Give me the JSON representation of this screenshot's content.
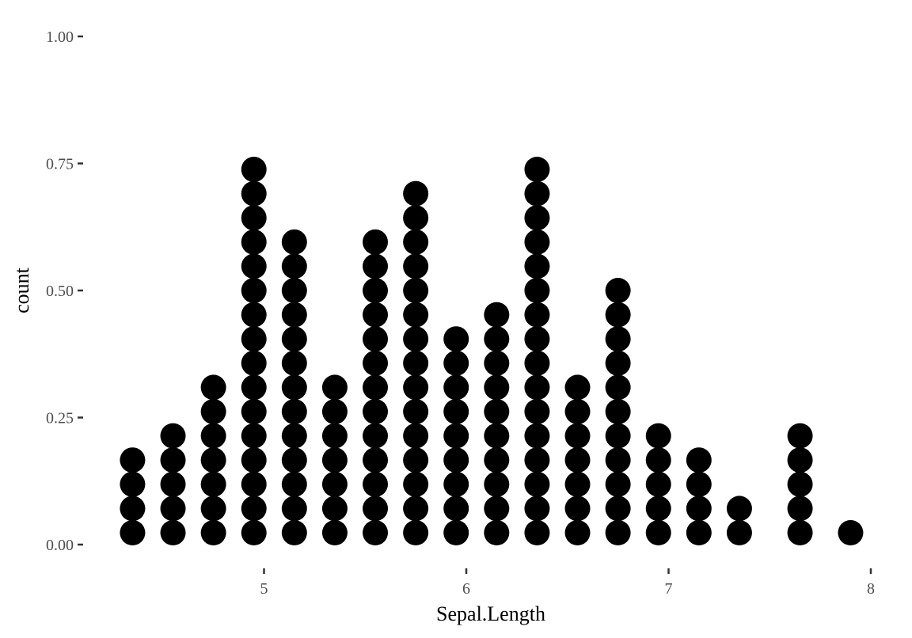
{
  "chart_data": {
    "type": "dotplot",
    "xlabel": "Sepal.Length",
    "ylabel": "count",
    "xlim": [
      4.0,
      8.0
    ],
    "ylim": [
      0.0,
      1.0
    ],
    "x_ticks": [
      5,
      6,
      7,
      8
    ],
    "x_tick_labels": [
      "5",
      "6",
      "7",
      "8"
    ],
    "y_ticks": [
      0.0,
      0.25,
      0.5,
      0.75,
      1.0
    ],
    "y_tick_labels": [
      "0.00",
      "0.25",
      "0.50",
      "0.75",
      "1.00"
    ],
    "dot_color": "#000000",
    "grid": false,
    "bins": [
      {
        "x": 4.35,
        "count": 4
      },
      {
        "x": 4.55,
        "count": 5
      },
      {
        "x": 4.75,
        "count": 7
      },
      {
        "x": 4.95,
        "count": 16
      },
      {
        "x": 5.15,
        "count": 13
      },
      {
        "x": 5.35,
        "count": 7
      },
      {
        "x": 5.55,
        "count": 13
      },
      {
        "x": 5.75,
        "count": 15
      },
      {
        "x": 5.95,
        "count": 9
      },
      {
        "x": 6.15,
        "count": 10
      },
      {
        "x": 6.35,
        "count": 16
      },
      {
        "x": 6.55,
        "count": 7
      },
      {
        "x": 6.75,
        "count": 11
      },
      {
        "x": 6.95,
        "count": 5
      },
      {
        "x": 7.15,
        "count": 4
      },
      {
        "x": 7.35,
        "count": 2
      },
      {
        "x": 7.65,
        "count": 5
      },
      {
        "x": 7.9,
        "count": 1
      }
    ]
  }
}
